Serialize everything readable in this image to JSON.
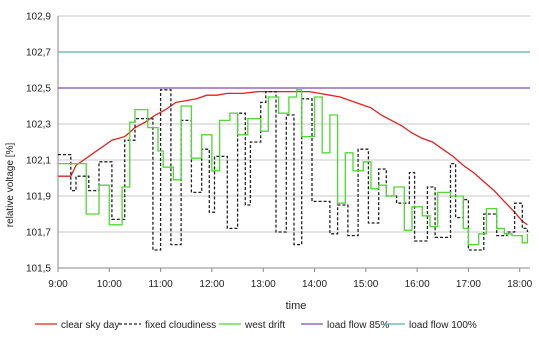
{
  "chart_data": {
    "type": "line",
    "title": "",
    "xlabel": "time",
    "ylabel": "relative voltage [%]",
    "xlim": [
      9.0,
      18.2
    ],
    "ylim": [
      101.5,
      102.9
    ],
    "x_ticks": [
      {
        "value": 9,
        "label": "9:00"
      },
      {
        "value": 10,
        "label": "10:00"
      },
      {
        "value": 11,
        "label": "11:00"
      },
      {
        "value": 12,
        "label": "12:00"
      },
      {
        "value": 13,
        "label": "13:00"
      },
      {
        "value": 14,
        "label": "14:00"
      },
      {
        "value": 15,
        "label": "15:00"
      },
      {
        "value": 16,
        "label": "16:00"
      },
      {
        "value": 17,
        "label": "17:00"
      },
      {
        "value": 18,
        "label": "18:00"
      }
    ],
    "y_ticks": [
      {
        "value": 101.5,
        "label": "101,5"
      },
      {
        "value": 101.7,
        "label": "101,7"
      },
      {
        "value": 101.9,
        "label": "101,9"
      },
      {
        "value": 102.1,
        "label": "102,1"
      },
      {
        "value": 102.3,
        "label": "102,3"
      },
      {
        "value": 102.5,
        "label": "102,5"
      },
      {
        "value": 102.7,
        "label": "102,7"
      },
      {
        "value": 102.9,
        "label": "102,9"
      }
    ],
    "grid": "horizontal",
    "legend_position": "bottom",
    "series": [
      {
        "name": "clear sky day",
        "color": "#e8201f",
        "style": "solid",
        "step": false,
        "points": [
          [
            9.0,
            102.01
          ],
          [
            9.25,
            102.01
          ],
          [
            9.35,
            102.07
          ],
          [
            9.5,
            102.1
          ],
          [
            9.7,
            102.14
          ],
          [
            9.9,
            102.18
          ],
          [
            10.05,
            102.21
          ],
          [
            10.3,
            102.23
          ],
          [
            10.5,
            102.28
          ],
          [
            10.7,
            102.31
          ],
          [
            10.9,
            102.35
          ],
          [
            11.1,
            102.38
          ],
          [
            11.3,
            102.42
          ],
          [
            11.5,
            102.43
          ],
          [
            11.7,
            102.44
          ],
          [
            11.9,
            102.46
          ],
          [
            12.1,
            102.46
          ],
          [
            12.3,
            102.47
          ],
          [
            12.6,
            102.47
          ],
          [
            12.9,
            102.48
          ],
          [
            13.3,
            102.48
          ],
          [
            13.6,
            102.48
          ],
          [
            13.9,
            102.48
          ],
          [
            14.1,
            102.47
          ],
          [
            14.3,
            102.46
          ],
          [
            14.5,
            102.45
          ],
          [
            14.7,
            102.43
          ],
          [
            14.9,
            102.41
          ],
          [
            15.1,
            102.39
          ],
          [
            15.3,
            102.35
          ],
          [
            15.5,
            102.32
          ],
          [
            15.7,
            102.29
          ],
          [
            15.9,
            102.25
          ],
          [
            16.1,
            102.22
          ],
          [
            16.3,
            102.2
          ],
          [
            16.5,
            102.16
          ],
          [
            16.7,
            102.12
          ],
          [
            16.9,
            102.07
          ],
          [
            17.1,
            102.03
          ],
          [
            17.3,
            101.98
          ],
          [
            17.5,
            101.93
          ],
          [
            17.7,
            101.87
          ],
          [
            17.9,
            101.81
          ],
          [
            18.05,
            101.76
          ],
          [
            18.15,
            101.74
          ]
        ]
      },
      {
        "name": "fixed cloudiness",
        "color": "#222222",
        "style": "dashed",
        "step": true,
        "points": [
          [
            9.0,
            102.13
          ],
          [
            9.25,
            101.93
          ],
          [
            9.35,
            102.01
          ],
          [
            9.6,
            101.93
          ],
          [
            9.8,
            102.09
          ],
          [
            10.05,
            101.77
          ],
          [
            10.3,
            102.21
          ],
          [
            10.5,
            102.33
          ],
          [
            10.85,
            101.6
          ],
          [
            11.0,
            102.49
          ],
          [
            11.2,
            101.63
          ],
          [
            11.4,
            102.32
          ],
          [
            11.6,
            101.92
          ],
          [
            11.8,
            102.16
          ],
          [
            11.95,
            101.81
          ],
          [
            12.05,
            102.12
          ],
          [
            12.3,
            101.72
          ],
          [
            12.5,
            102.36
          ],
          [
            12.65,
            101.85
          ],
          [
            12.75,
            102.2
          ],
          [
            12.95,
            102.42
          ],
          [
            13.05,
            102.48
          ],
          [
            13.25,
            101.7
          ],
          [
            13.45,
            102.35
          ],
          [
            13.6,
            101.63
          ],
          [
            13.75,
            102.44
          ],
          [
            13.95,
            101.87
          ],
          [
            14.3,
            101.69
          ],
          [
            14.45,
            101.85
          ],
          [
            14.65,
            101.68
          ],
          [
            14.85,
            102.16
          ],
          [
            15.05,
            101.75
          ],
          [
            15.25,
            102.05
          ],
          [
            15.4,
            101.9
          ],
          [
            15.6,
            101.86
          ],
          [
            15.85,
            102.03
          ],
          [
            15.95,
            101.65
          ],
          [
            16.2,
            101.95
          ],
          [
            16.35,
            101.67
          ],
          [
            16.65,
            102.08
          ],
          [
            16.75,
            101.78
          ],
          [
            16.9,
            101.88
          ],
          [
            17.0,
            101.6
          ],
          [
            17.3,
            101.8
          ],
          [
            17.55,
            101.68
          ],
          [
            17.75,
            101.7
          ],
          [
            17.9,
            101.86
          ],
          [
            18.05,
            101.72
          ],
          [
            18.15,
            101.7
          ]
        ]
      },
      {
        "name": "west drift",
        "color": "#4ed933",
        "style": "solid",
        "step": true,
        "points": [
          [
            9.0,
            102.08
          ],
          [
            9.4,
            102.08
          ],
          [
            9.55,
            101.8
          ],
          [
            9.8,
            101.96
          ],
          [
            10.0,
            101.74
          ],
          [
            10.25,
            101.95
          ],
          [
            10.4,
            102.31
          ],
          [
            10.5,
            102.38
          ],
          [
            10.75,
            102.28
          ],
          [
            10.95,
            102.15
          ],
          [
            11.05,
            102.06
          ],
          [
            11.25,
            101.99
          ],
          [
            11.4,
            102.4
          ],
          [
            11.6,
            102.11
          ],
          [
            11.8,
            102.24
          ],
          [
            12.0,
            102.04
          ],
          [
            12.15,
            102.32
          ],
          [
            12.35,
            102.36
          ],
          [
            12.5,
            102.24
          ],
          [
            12.7,
            102.33
          ],
          [
            12.95,
            102.26
          ],
          [
            13.1,
            102.45
          ],
          [
            13.3,
            102.36
          ],
          [
            13.5,
            102.45
          ],
          [
            13.65,
            102.49
          ],
          [
            13.75,
            102.23
          ],
          [
            14.0,
            102.45
          ],
          [
            14.15,
            102.14
          ],
          [
            14.3,
            102.35
          ],
          [
            14.45,
            101.86
          ],
          [
            14.6,
            102.14
          ],
          [
            14.75,
            102.04
          ],
          [
            14.95,
            102.09
          ],
          [
            15.1,
            101.94
          ],
          [
            15.25,
            101.96
          ],
          [
            15.4,
            101.9
          ],
          [
            15.55,
            101.95
          ],
          [
            15.75,
            101.71
          ],
          [
            15.9,
            101.84
          ],
          [
            16.1,
            101.79
          ],
          [
            16.25,
            101.73
          ],
          [
            16.4,
            101.92
          ],
          [
            16.65,
            101.9
          ],
          [
            16.9,
            101.72
          ],
          [
            17.0,
            101.63
          ],
          [
            17.2,
            101.69
          ],
          [
            17.35,
            101.83
          ],
          [
            17.55,
            101.72
          ],
          [
            17.7,
            101.69
          ],
          [
            17.85,
            101.68
          ],
          [
            18.05,
            101.64
          ],
          [
            18.15,
            101.69
          ]
        ]
      },
      {
        "name": "load flow 85%",
        "color": "#7b52a1",
        "style": "solid",
        "step": false,
        "points": [
          [
            9.0,
            102.5
          ],
          [
            18.2,
            102.5
          ]
        ]
      },
      {
        "name": "load flow 100%",
        "color": "#4bb6ac",
        "style": "solid",
        "step": false,
        "points": [
          [
            9.0,
            102.7
          ],
          [
            18.2,
            102.7
          ]
        ]
      }
    ]
  }
}
